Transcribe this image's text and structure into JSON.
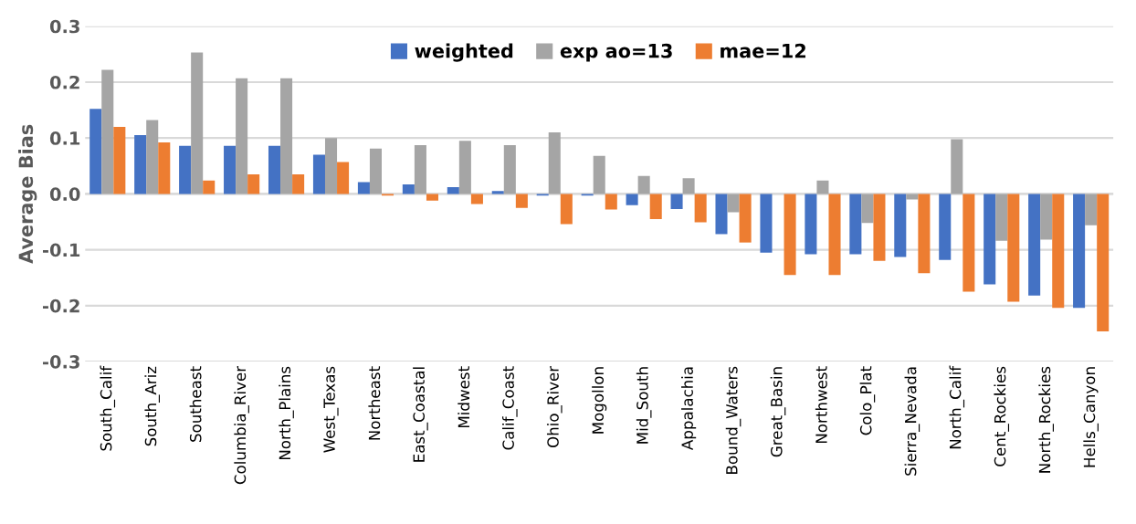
{
  "chart_data": {
    "type": "bar",
    "ylabel": "Average Bias",
    "categories": [
      "South_Calif",
      "South_Ariz",
      "Southeast",
      "Columbia_River",
      "North_Plains",
      "West_Texas",
      "Northeast",
      "East_Coastal",
      "Midwest",
      "Calif_Coast",
      "Ohio_River",
      "Mogollon",
      "Mid_South",
      "Appalachia",
      "Bound_Waters",
      "Great_Basin",
      "Northwest",
      "Colo_Plat",
      "Sierra_Nevada",
      "North_Calif",
      "Cent_Rockies",
      "North_Rockies",
      "Hells_Canyon"
    ],
    "series": [
      {
        "name": "weighted",
        "color": "#4472c4",
        "values": [
          0.152,
          0.105,
          0.086,
          0.086,
          0.086,
          0.07,
          0.021,
          0.017,
          0.012,
          0.005,
          -0.003,
          -0.003,
          -0.02,
          -0.027,
          -0.072,
          -0.105,
          -0.108,
          -0.108,
          -0.113,
          -0.118,
          -0.162,
          -0.182,
          -0.204
        ]
      },
      {
        "name": "exp ao=13",
        "color": "#a5a5a5",
        "values": [
          0.222,
          0.132,
          0.253,
          0.207,
          0.207,
          0.1,
          0.081,
          0.087,
          0.095,
          0.087,
          0.11,
          0.068,
          0.032,
          0.028,
          -0.033,
          null,
          0.024,
          -0.052,
          -0.01,
          0.098,
          -0.084,
          -0.082,
          -0.056
        ]
      },
      {
        "name": "mae=12",
        "color": "#ed7d31",
        "values": [
          0.12,
          0.092,
          0.024,
          0.035,
          0.035,
          0.057,
          -0.003,
          -0.012,
          -0.018,
          -0.025,
          -0.054,
          -0.028,
          -0.045,
          -0.051,
          -0.087,
          -0.145,
          -0.145,
          -0.12,
          -0.142,
          -0.175,
          -0.193,
          -0.204,
          -0.246
        ]
      }
    ],
    "ylim": [
      -0.3,
      0.3
    ],
    "yticks": [
      -0.3,
      -0.2,
      -0.1,
      {
        "value": 0,
        "label": "0.0"
      },
      0.1,
      0.2,
      0.3
    ],
    "grid": "y",
    "legend": "top"
  }
}
